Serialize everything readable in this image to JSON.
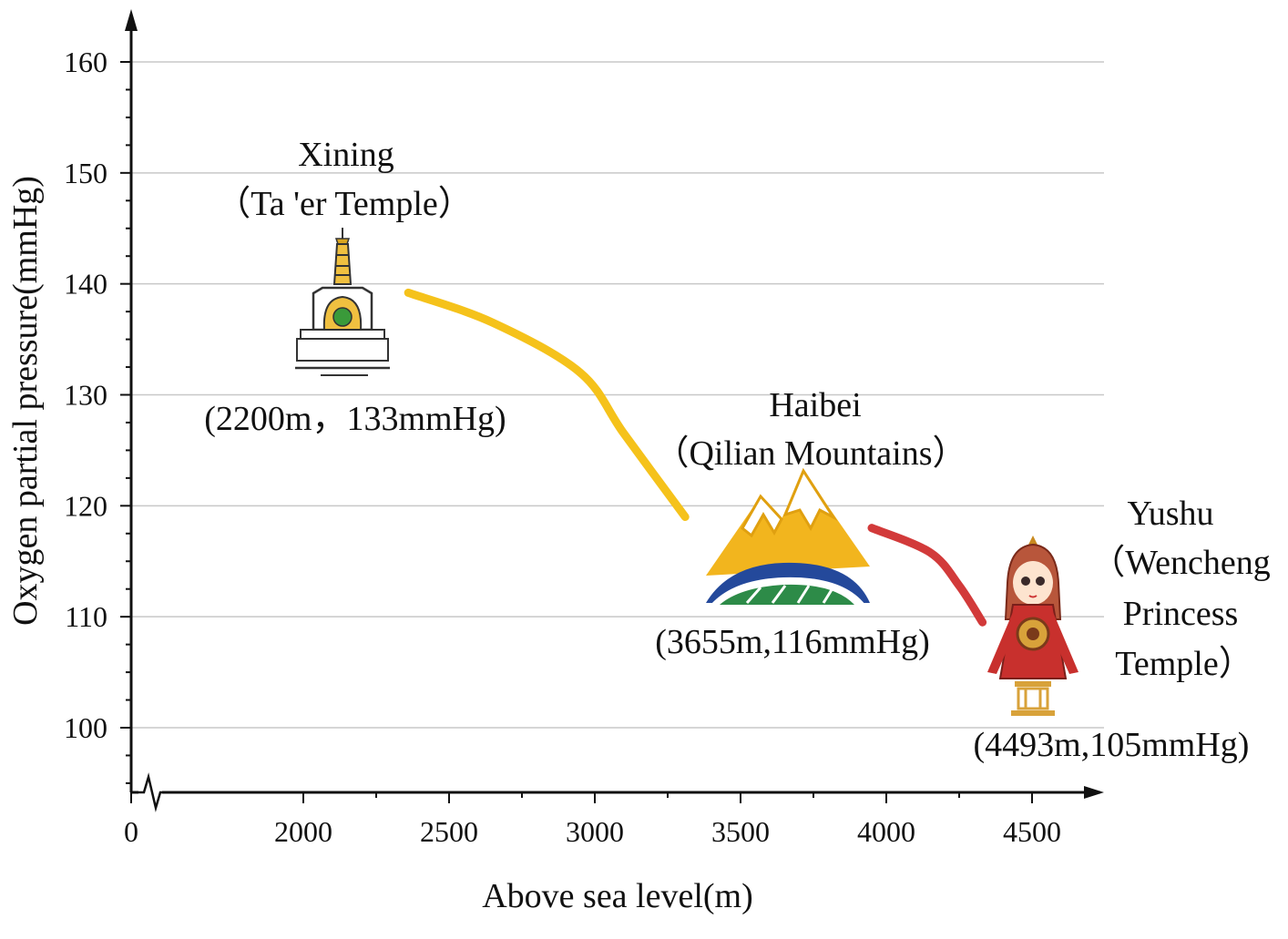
{
  "chart_data": {
    "type": "line",
    "xlabel": "Above sea level(m)",
    "ylabel": "Oxygen partial pressure(mmHg)",
    "x_ticks": [
      "0",
      "2000",
      "2500",
      "3000",
      "3500",
      "4000",
      "4500"
    ],
    "y_ticks": [
      "100",
      "110",
      "120",
      "130",
      "140",
      "150",
      "160"
    ],
    "xlim": [
      0,
      4700
    ],
    "x_axis_break_after": 0,
    "ylim": [
      95,
      165
    ],
    "grid": "horizontal",
    "series": [
      {
        "segment": "Xining-Haibei",
        "color": "#f5c21b",
        "x": [
          2360,
          2650,
          2950,
          3100,
          3310
        ],
        "y": [
          139.2,
          136.5,
          132.0,
          126.5,
          119.0
        ]
      },
      {
        "segment": "Haibei-Yushu",
        "color": "#d23a3a",
        "x": [
          3950,
          4150,
          4250,
          4330
        ],
        "y": [
          118.0,
          115.8,
          112.8,
          109.5
        ]
      }
    ],
    "points": [
      {
        "name": "Xining",
        "subtitle": "（Ta 'er Temple）",
        "label": "(2200m，133mmHg)",
        "altitude": 2200,
        "pressure": 133,
        "icon": "stupa-icon"
      },
      {
        "name": "Haibei",
        "subtitle": "（Qilian Mountains）",
        "label": "(3655m,116mmHg)",
        "altitude": 3655,
        "pressure": 116,
        "icon": "mountain-icon"
      },
      {
        "name": "Yushu",
        "subtitle_lines": [
          "（Wencheng",
          "Princess",
          "Temple）"
        ],
        "label": "(4493m,105mmHg)",
        "altitude": 4493,
        "pressure": 105,
        "icon": "princess-icon"
      }
    ]
  }
}
